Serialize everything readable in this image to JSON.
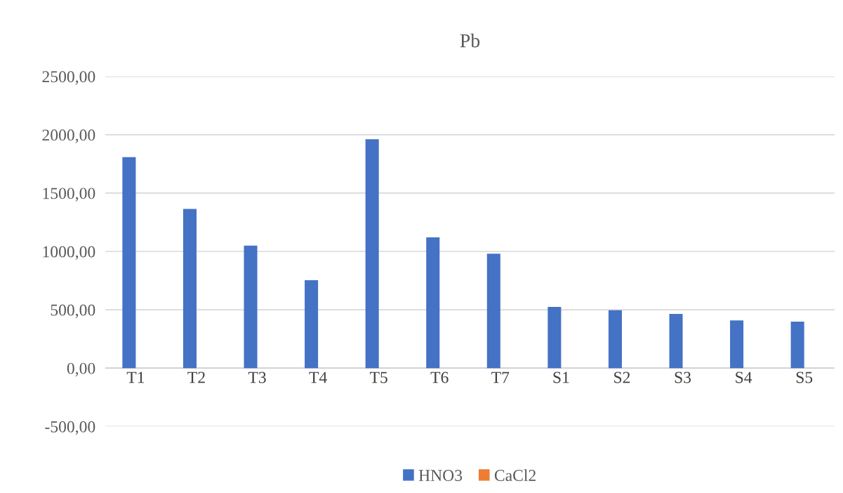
{
  "chart_data": {
    "type": "bar",
    "title": "Pb",
    "categories": [
      "T1",
      "T2",
      "T3",
      "T4",
      "T5",
      "T6",
      "T7",
      "S1",
      "S2",
      "S3",
      "S4",
      "S5"
    ],
    "series": [
      {
        "name": "HNO3",
        "color": "#4472c4",
        "values": [
          1808,
          1365,
          1050,
          754,
          1962,
          1121,
          981,
          524,
          496,
          464,
          409,
          398
        ]
      },
      {
        "name": "CaCl2",
        "color": "#ed7d31",
        "values": [
          0,
          0,
          0,
          0,
          0,
          0,
          0,
          0,
          0,
          0,
          0,
          0
        ]
      }
    ],
    "ylim": [
      -500,
      2500
    ],
    "yticks": [
      {
        "value": -500,
        "label": "-500,00"
      },
      {
        "value": 0,
        "label": "0,00"
      },
      {
        "value": 500,
        "label": "500,00"
      },
      {
        "value": 1000,
        "label": "1000,00"
      },
      {
        "value": 1500,
        "label": "1500,00"
      },
      {
        "value": 2000,
        "label": "2000,00"
      },
      {
        "value": 2500,
        "label": "2500,00"
      }
    ],
    "grid": "y",
    "legend": "bottom"
  }
}
